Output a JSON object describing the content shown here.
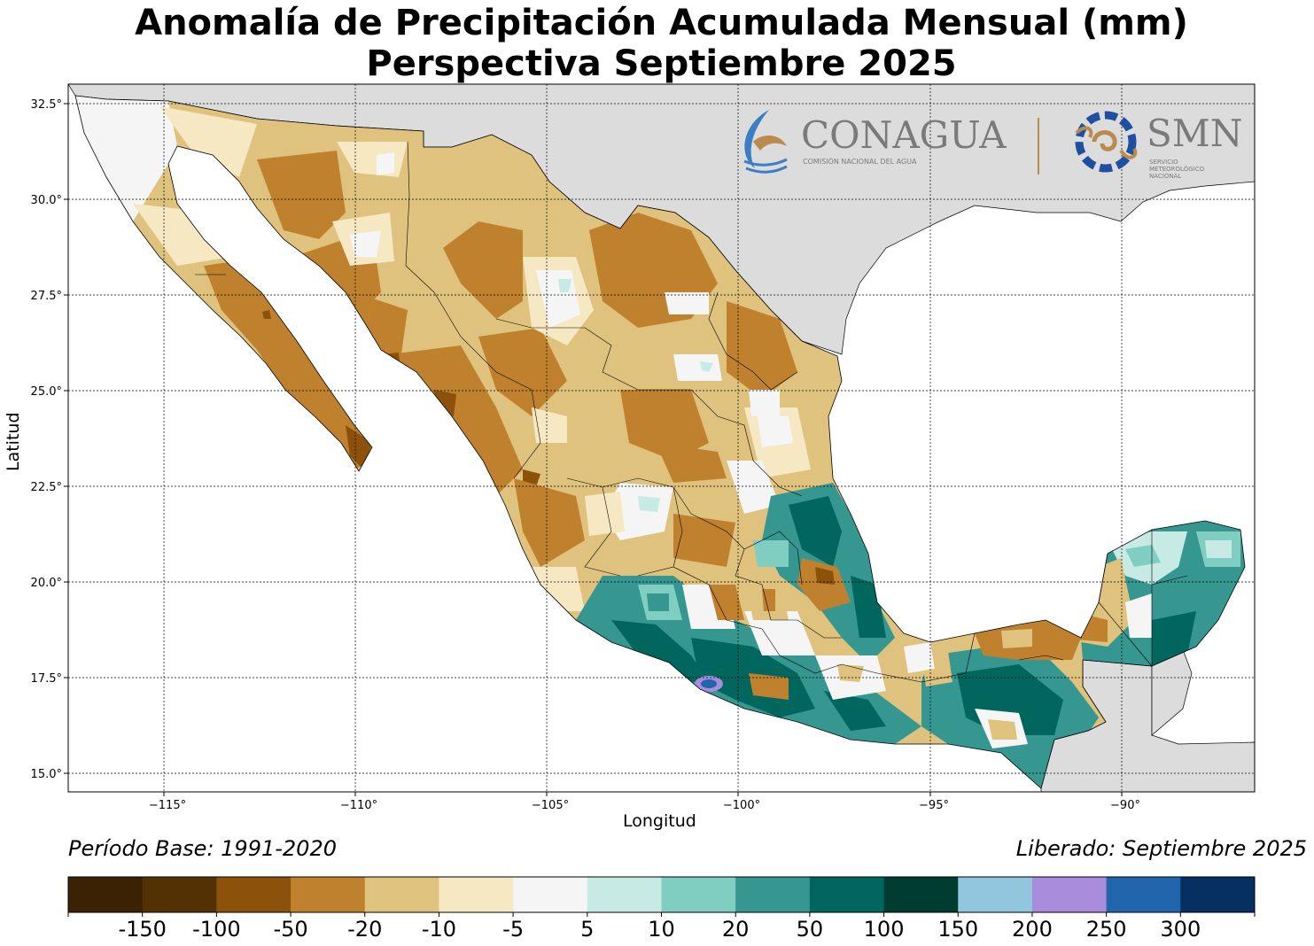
{
  "title": "Anomalía de Precipitación Acumulada Mensual (mm)",
  "subtitle": "Perspectiva Septiembre 2025",
  "xlabel": "Longitud",
  "ylabel": "Latitud",
  "x_ticks": [
    "−115°",
    "−110°",
    "−105°",
    "−100°",
    "−95°",
    "−90°"
  ],
  "y_ticks": [
    "32.5°",
    "30.0°",
    "27.5°",
    "25.0°",
    "22.5°",
    "20.0°",
    "17.5°",
    "15.0°"
  ],
  "base_period": "Período Base: 1991-2020",
  "released": "Liberado: Septiembre 2025",
  "logos": {
    "conagua_name": "CONAGUA",
    "conagua_subtitle": "COMISIÓN NACIONAL DEL AGUA",
    "smn_name": "SMN",
    "smn_subtitle_1": "SERVICIO",
    "smn_subtitle_2": "METEOROLÓGICO",
    "smn_subtitle_3": "NACIONAL"
  },
  "colorbar": {
    "labels": [
      "-150",
      "-100",
      "-50",
      "-20",
      "-10",
      "-5",
      "5",
      "10",
      "20",
      "50",
      "100",
      "150",
      "200",
      "250",
      "300"
    ],
    "colors": [
      "#3b2205",
      "#543005",
      "#8c510a",
      "#bf812d",
      "#dfc27d",
      "#f6e8c3",
      "#f5f5f5",
      "#c7eae5",
      "#80cdc1",
      "#35978f",
      "#01665e",
      "#003c30",
      "#92c5de",
      "#a98ddc",
      "#2166ac",
      "#053061"
    ]
  },
  "colors": {
    "land_outside": "#dcdcdc",
    "sea": "#ffffff"
  }
}
